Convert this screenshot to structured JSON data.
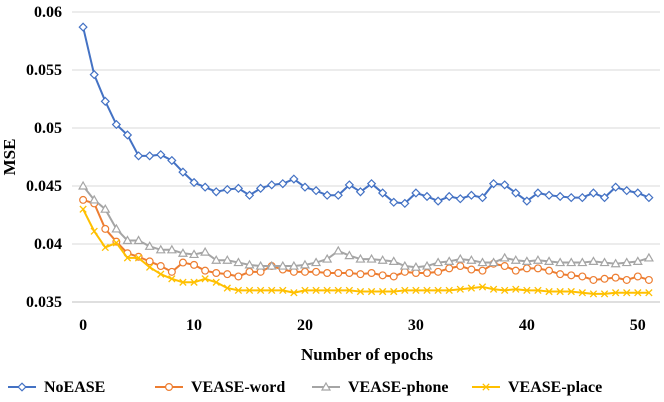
{
  "chart_data": {
    "type": "line",
    "title": "",
    "xlabel": "Number of epochs",
    "ylabel": "MSE",
    "xlim": [
      -1,
      52
    ],
    "ylim": [
      0.035,
      0.06
    ],
    "x_ticks": [
      0,
      10,
      20,
      30,
      40,
      50
    ],
    "x_tick_labels": [
      "0",
      "10",
      "20",
      "30",
      "40",
      "50"
    ],
    "y_ticks": [
      0.035,
      0.04,
      0.045,
      0.05,
      0.055,
      0.06
    ],
    "y_tick_labels": [
      "0.035",
      "0.04",
      "0.045",
      "0.05",
      "0.055",
      "0.06"
    ],
    "grid": "horizontal",
    "legend_position": "bottom",
    "x": [
      0,
      1,
      2,
      3,
      4,
      5,
      6,
      7,
      8,
      9,
      10,
      11,
      12,
      13,
      14,
      15,
      16,
      17,
      18,
      19,
      20,
      21,
      22,
      23,
      24,
      25,
      26,
      27,
      28,
      29,
      30,
      31,
      32,
      33,
      34,
      35,
      36,
      37,
      38,
      39,
      40,
      41,
      42,
      43,
      44,
      45,
      46,
      47,
      48,
      49,
      50,
      51
    ],
    "series": [
      {
        "name": "NoEASE",
        "color": "#4472C4",
        "marker": "diamond",
        "values": [
          0.0587,
          0.0546,
          0.0523,
          0.0503,
          0.0494,
          0.0476,
          0.0476,
          0.0477,
          0.0472,
          0.0462,
          0.0453,
          0.0449,
          0.0445,
          0.0447,
          0.0448,
          0.0442,
          0.0448,
          0.0451,
          0.0452,
          0.0456,
          0.0449,
          0.0446,
          0.0442,
          0.0442,
          0.0451,
          0.0445,
          0.0452,
          0.0444,
          0.0436,
          0.0435,
          0.0444,
          0.0441,
          0.0437,
          0.0441,
          0.0439,
          0.0442,
          0.044,
          0.0452,
          0.0451,
          0.0444,
          0.0437,
          0.0444,
          0.0442,
          0.0441,
          0.044,
          0.044,
          0.0444,
          0.044,
          0.0449,
          0.0446,
          0.0444,
          0.044
        ]
      },
      {
        "name": "VEASE-word",
        "color": "#ED7D31",
        "marker": "circle",
        "values": [
          0.0438,
          0.0435,
          0.0413,
          0.0402,
          0.0392,
          0.0389,
          0.0385,
          0.0381,
          0.0376,
          0.0384,
          0.0382,
          0.0377,
          0.0375,
          0.0374,
          0.0372,
          0.0376,
          0.0376,
          0.0381,
          0.0378,
          0.0376,
          0.0376,
          0.0376,
          0.0375,
          0.0375,
          0.0375,
          0.0374,
          0.0375,
          0.0373,
          0.0372,
          0.0376,
          0.0375,
          0.0375,
          0.0376,
          0.0379,
          0.0381,
          0.0378,
          0.0377,
          0.0383,
          0.0381,
          0.0377,
          0.0379,
          0.0379,
          0.0377,
          0.0374,
          0.0373,
          0.0372,
          0.0369,
          0.037,
          0.0371,
          0.0369,
          0.0372,
          0.0369
        ]
      },
      {
        "name": "VEASE-phone",
        "color": "#A5A5A5",
        "marker": "triangle",
        "values": [
          0.045,
          0.0438,
          0.043,
          0.0413,
          0.0403,
          0.0403,
          0.0398,
          0.0395,
          0.0395,
          0.0392,
          0.0391,
          0.0393,
          0.0386,
          0.0386,
          0.0384,
          0.0382,
          0.0381,
          0.0381,
          0.0381,
          0.0381,
          0.0382,
          0.0384,
          0.0387,
          0.0394,
          0.039,
          0.0387,
          0.0387,
          0.0386,
          0.0385,
          0.0381,
          0.038,
          0.0381,
          0.0384,
          0.0385,
          0.0387,
          0.0386,
          0.0384,
          0.0384,
          0.0388,
          0.0386,
          0.0385,
          0.0386,
          0.0385,
          0.0384,
          0.0384,
          0.0384,
          0.0385,
          0.0384,
          0.0383,
          0.0384,
          0.0385,
          0.0388
        ]
      },
      {
        "name": "VEASE-place",
        "color": "#FFC000",
        "marker": "x",
        "values": [
          0.043,
          0.0411,
          0.0397,
          0.0401,
          0.0388,
          0.0388,
          0.038,
          0.0374,
          0.037,
          0.0367,
          0.0367,
          0.037,
          0.0367,
          0.0362,
          0.036,
          0.036,
          0.036,
          0.036,
          0.036,
          0.0358,
          0.036,
          0.036,
          0.036,
          0.036,
          0.036,
          0.0359,
          0.0359,
          0.0359,
          0.0359,
          0.036,
          0.036,
          0.036,
          0.036,
          0.036,
          0.0361,
          0.0362,
          0.0363,
          0.0361,
          0.036,
          0.0361,
          0.036,
          0.036,
          0.0359,
          0.0359,
          0.0359,
          0.0358,
          0.0357,
          0.0357,
          0.0358,
          0.0358,
          0.0358,
          0.0358
        ]
      }
    ]
  }
}
